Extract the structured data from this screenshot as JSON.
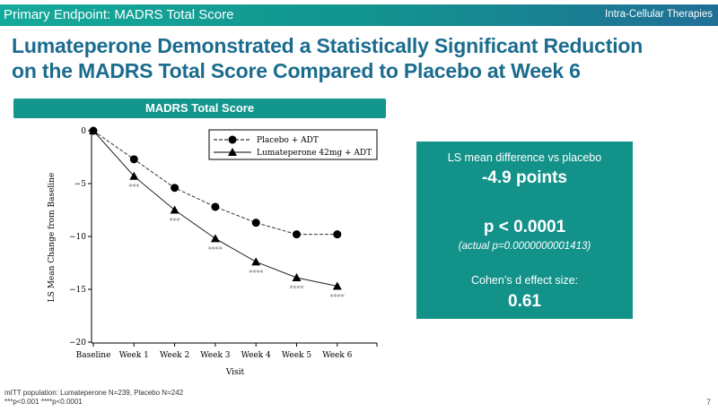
{
  "header": {
    "section": "Primary Endpoint: MADRS Total Score",
    "company": "Intra-Cellular Therapies"
  },
  "title": {
    "line1": "Lumateperone Demonstrated a Statistically Significant Reduction",
    "line2": "on the MADRS Total Score Compared to Placebo at Week 6"
  },
  "chart_banner": "MADRS Total Score",
  "chart_data": {
    "type": "line",
    "title": "MADRS Total Score",
    "xlabel": "Visit",
    "ylabel": "LS Mean Change from Baseline",
    "categories": [
      "Baseline",
      "Week 1",
      "Week 2",
      "Week 3",
      "Week 4",
      "Week 5",
      "Week 6"
    ],
    "yticks": [
      0,
      -5,
      -10,
      -15,
      -20
    ],
    "ytick_labels": [
      "0",
      "−5",
      "−10",
      "−15",
      "−20"
    ],
    "ylim": [
      -20,
      0
    ],
    "legend_position": "top-right",
    "series": [
      {
        "name": "Placebo + ADT",
        "marker": "circle",
        "line": "dashed",
        "values": [
          0,
          -2.7,
          -5.4,
          -7.2,
          -8.7,
          -9.8,
          -9.8
        ]
      },
      {
        "name": "Lumateperone 42mg + ADT",
        "marker": "triangle",
        "line": "solid",
        "values": [
          0,
          -4.3,
          -7.5,
          -10.2,
          -12.4,
          -13.9,
          -14.7
        ]
      }
    ],
    "annotations": [
      "",
      "***",
      "***",
      "****",
      "****",
      "****",
      "****"
    ]
  },
  "stats": {
    "diff_label": "LS mean difference vs placebo",
    "diff_value": "-4.9 points",
    "p_value": "p < 0.0001",
    "p_actual": "(actual p=0.0000000001413)",
    "effect_label": "Cohen’s d effect size:",
    "effect_value": "0.61"
  },
  "footer": {
    "population": "mITT population: Lumateperone N=239, Placebo N=242",
    "significance": "***p<0.001 ****p<0.0001",
    "page": "7"
  },
  "colors": {
    "teal": "#13928a",
    "title_blue": "#1b6c8f"
  }
}
